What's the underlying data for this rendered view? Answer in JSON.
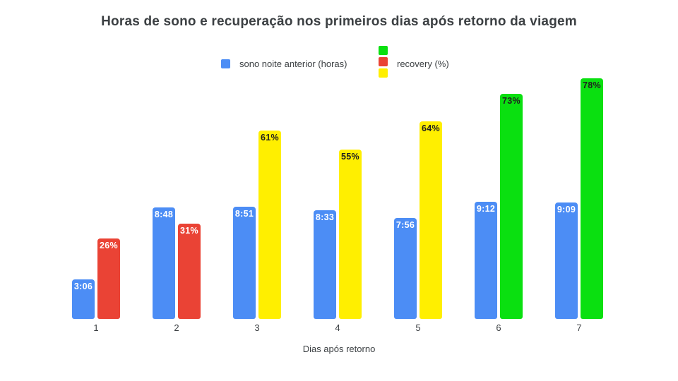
{
  "page": {
    "background_color": "#ffffff"
  },
  "chart_data": {
    "type": "bar",
    "title": "Horas de sono e recuperação nos primeiros dias após retorno da viagem",
    "xlabel": "Dias após retorno",
    "ylabel": "",
    "grid": false,
    "legend_position": "top",
    "categories": [
      "1",
      "2",
      "3",
      "4",
      "5",
      "6",
      "7"
    ],
    "series": [
      {
        "name": "sono noite anterior (horas)",
        "unit": "horas",
        "color": "#4c8df5",
        "values": [
          3.1,
          8.8,
          8.85,
          8.55,
          7.93,
          9.2,
          9.15
        ],
        "labels": [
          "3:06",
          "8:48",
          "8:51",
          "8:33",
          "7:56",
          "9:12",
          "9:09"
        ],
        "label_color": "#ffffff"
      },
      {
        "name": "recovery (%)",
        "unit": "%",
        "values": [
          26,
          31,
          61,
          55,
          64,
          73,
          78
        ],
        "labels": [
          "26%",
          "31%",
          "61%",
          "55%",
          "64%",
          "73%",
          "78%"
        ],
        "bar_colors": [
          "#ea4335",
          "#ea4335",
          "#ffef00",
          "#ffef00",
          "#ffef00",
          "#0ae010",
          "#0ae010"
        ],
        "label_colors": [
          "#ffffff",
          "#ffffff",
          "#202020",
          "#202020",
          "#202020",
          "#202020",
          "#202020"
        ],
        "legend_swatch_stack": [
          "#0ae010",
          "#ea4335",
          "#ffef00"
        ]
      }
    ]
  }
}
